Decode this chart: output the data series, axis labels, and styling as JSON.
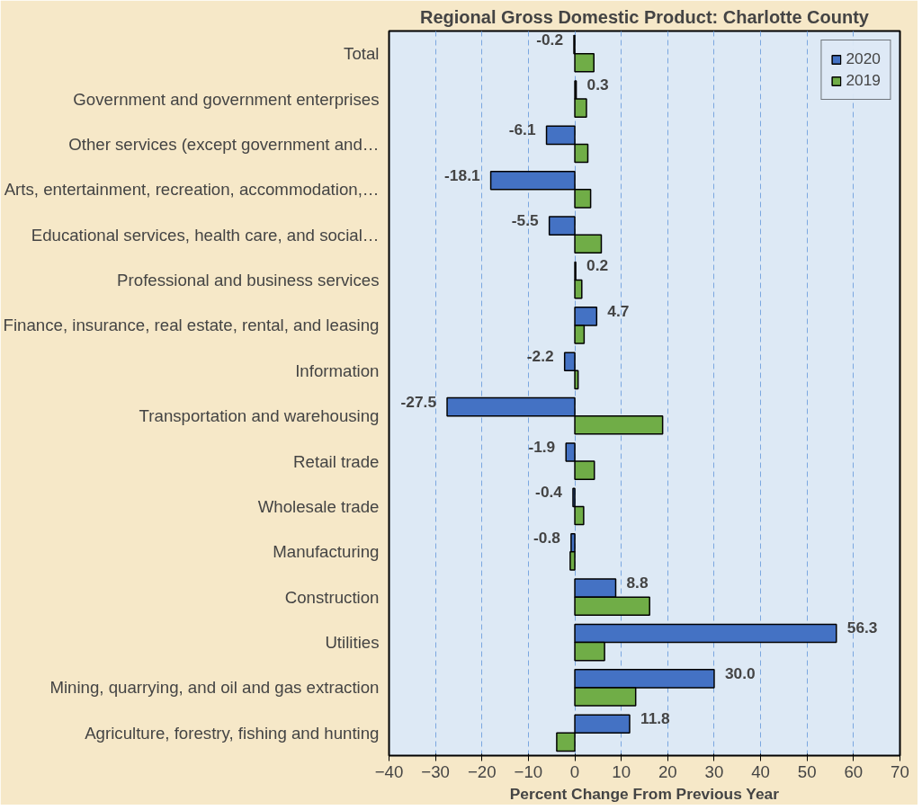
{
  "chart_data": {
    "type": "bar",
    "orientation": "horizontal",
    "title": "Regional Gross Domestic Product: Charlotte County",
    "xlabel": "Percent Change From Previous Year",
    "categories": [
      "Total",
      "Government and government enterprises",
      "Other services (except government and…",
      "Arts, entertainment, recreation, accommodation,…",
      "Educational services, health care, and social…",
      "Professional and business services",
      "Finance, insurance, real estate, rental, and leasing",
      "Information",
      "Transportation and warehousing",
      "Retail trade",
      "Wholesale trade",
      "Manufacturing",
      "Construction",
      "Utilities",
      "Mining, quarrying, and oil and gas extraction",
      "Agriculture, forestry, fishing and hunting"
    ],
    "series": [
      {
        "name": "2020",
        "color": "#4472c4",
        "values": [
          -0.2,
          0.3,
          -6.1,
          -18.1,
          -5.5,
          0.2,
          4.7,
          -2.2,
          -27.5,
          -1.9,
          -0.4,
          -0.8,
          8.8,
          56.3,
          30.0,
          11.8
        ],
        "value_labels": [
          "-0.2",
          "0.3",
          "-6.1",
          "-18.1",
          "-5.5",
          "0.2",
          "4.7",
          "-2.2",
          "-27.5",
          "-1.9",
          "-0.4",
          "-0.8",
          "8.8",
          "56.3",
          "30.0",
          "11.8"
        ]
      },
      {
        "name": "2019",
        "color": "#70ad47",
        "values": [
          4.1,
          2.5,
          2.8,
          3.4,
          5.7,
          1.5,
          2.0,
          0.7,
          18.9,
          4.2,
          1.9,
          -1.0,
          16.1,
          6.4,
          13.1,
          -3.9
        ]
      }
    ],
    "xlim": [
      -40,
      70
    ],
    "xticks": [
      -40,
      -30,
      -20,
      -10,
      0,
      10,
      20,
      30,
      40,
      50,
      60,
      70
    ],
    "grid": "x",
    "legend": "top right"
  }
}
